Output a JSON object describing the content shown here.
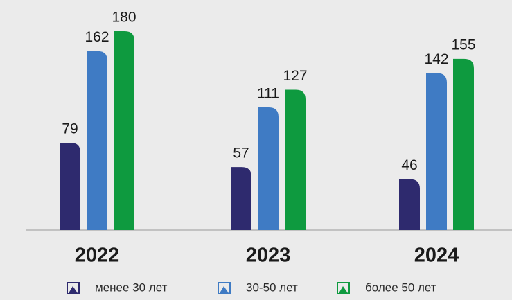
{
  "chart_data": {
    "type": "bar",
    "categories": [
      "2022",
      "2023",
      "2024"
    ],
    "series": [
      {
        "name": "менее 30 лет",
        "color": "#2e2a6e",
        "values": [
          79,
          57,
          46
        ]
      },
      {
        "name": "30-50 лет",
        "color": "#3f7bc4",
        "values": [
          162,
          111,
          142
        ]
      },
      {
        "name": "более 50 лет",
        "color": "#0e9a3f",
        "values": [
          180,
          127,
          155
        ]
      }
    ]
  }
}
